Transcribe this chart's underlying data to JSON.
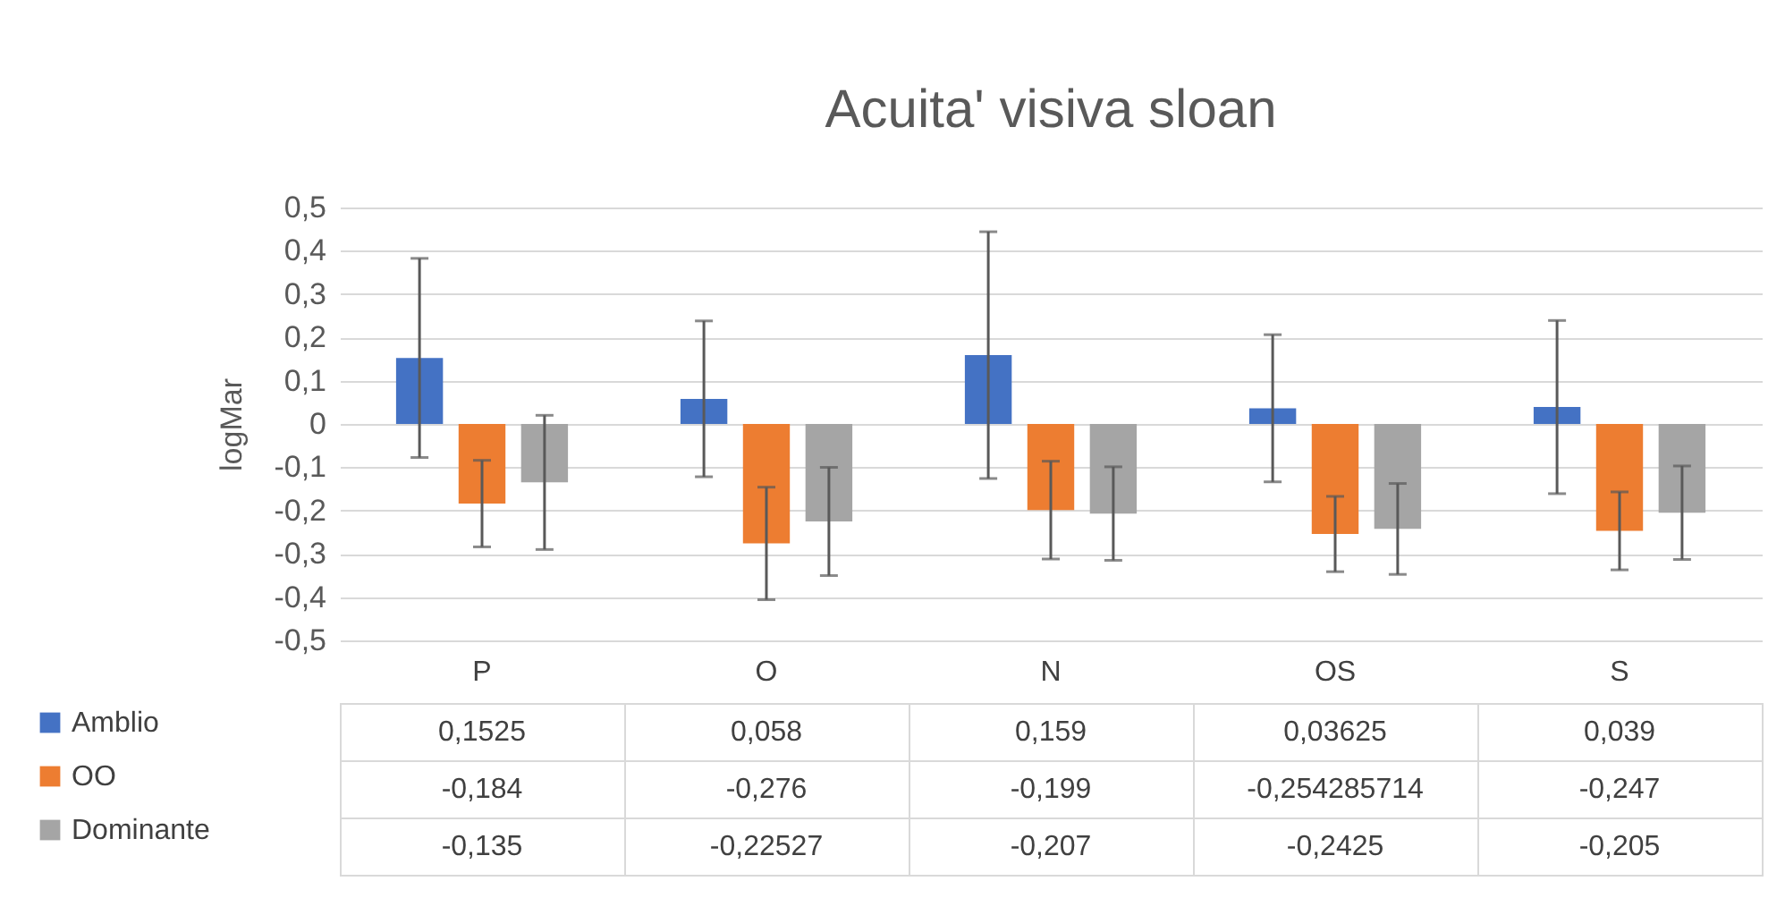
{
  "chart_data": {
    "type": "bar",
    "title": "Acuita' visiva sloan",
    "ylabel": "logMar",
    "categories": [
      "P",
      "O",
      "N",
      "OS",
      "S"
    ],
    "series": [
      {
        "name": "Amblio",
        "color": "#4472c4",
        "values": [
          0.1525,
          0.058,
          0.159,
          0.03625,
          0.039
        ],
        "errors": [
          0.23,
          0.18,
          0.285,
          0.17,
          0.2
        ],
        "value_labels": [
          "0,1525",
          "0,058",
          "0,159",
          "0,03625",
          "0,039"
        ]
      },
      {
        "name": "OO",
        "color": "#ed7d31",
        "values": [
          -0.184,
          -0.276,
          -0.199,
          -0.254285714,
          -0.247
        ],
        "errors": [
          0.1,
          0.13,
          0.113,
          0.087,
          0.09
        ],
        "value_labels": [
          "-0,184",
          "-0,276",
          "-0,199",
          "-0,254285714",
          "-0,247"
        ]
      },
      {
        "name": "Dominante",
        "color": "#a5a5a5",
        "values": [
          -0.135,
          -0.22527,
          -0.207,
          -0.2425,
          -0.205
        ],
        "errors": [
          0.155,
          0.125,
          0.108,
          0.105,
          0.108
        ],
        "value_labels": [
          "-0,135",
          "-0,22527",
          "-0,207",
          "-0,2425",
          "-0,205"
        ]
      }
    ],
    "ylim": [
      -0.5,
      0.5
    ],
    "yticks": [
      {
        "value": -0.5,
        "label": "-0,5"
      },
      {
        "value": -0.4,
        "label": "-0,4"
      },
      {
        "value": -0.3,
        "label": "-0,3"
      },
      {
        "value": -0.2,
        "label": "-0,2"
      },
      {
        "value": -0.1,
        "label": "-0,1"
      },
      0,
      {
        "value": 0.1,
        "label": "0,1"
      },
      {
        "value": 0.2,
        "label": "0,2"
      },
      {
        "value": 0.3,
        "label": "0,3"
      },
      {
        "value": 0.4,
        "label": "0,4"
      },
      {
        "value": 0.5,
        "label": "0,5"
      }
    ],
    "grid": "y",
    "legend": "bottom left"
  }
}
